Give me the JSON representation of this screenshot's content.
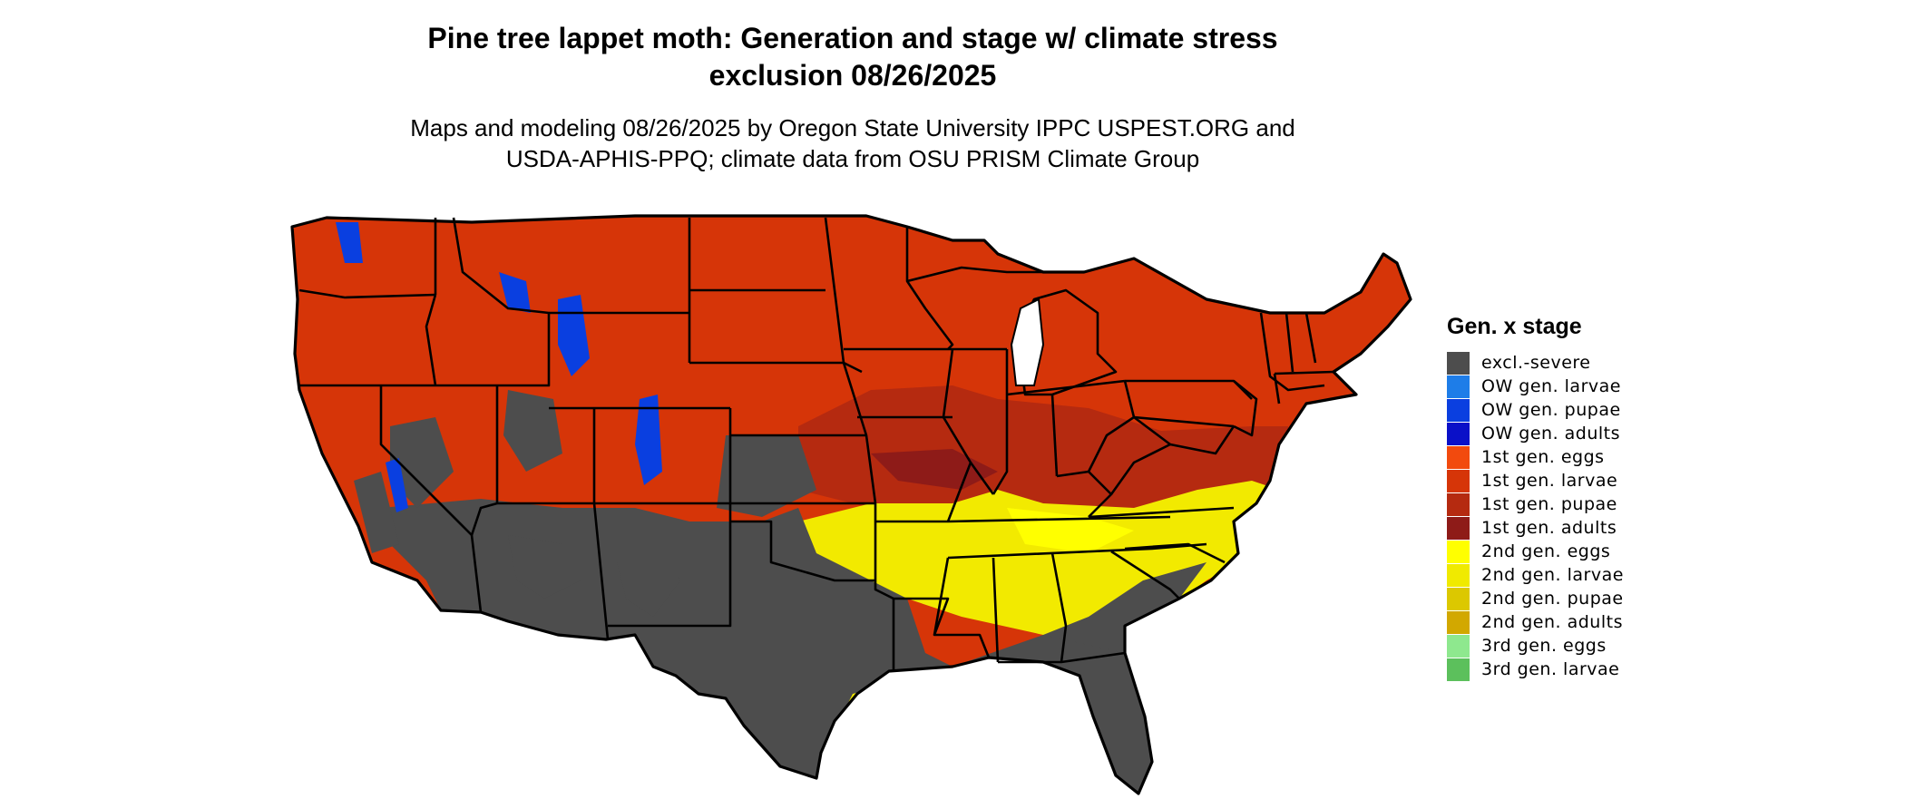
{
  "title": {
    "line1": "Pine tree lappet moth: Generation and stage w/ climate stress",
    "line2": "exclusion 08/26/2025"
  },
  "subtitle": {
    "line1": "Maps and modeling 08/26/2025 by Oregon State University IPPC USPEST.ORG and",
    "line2": "USDA-APHIS-PPQ; climate data from OSU PRISM Climate Group"
  },
  "legend": {
    "title": "Gen. x stage",
    "items": [
      {
        "label": "excl.-severe",
        "color": "#4d4d4d"
      },
      {
        "label": "OW gen. larvae",
        "color": "#1e7de8"
      },
      {
        "label": "OW gen. pupae",
        "color": "#0a3fe0"
      },
      {
        "label": "OW gen. adults",
        "color": "#0a10c8"
      },
      {
        "label": "1st gen. eggs",
        "color": "#f24a0e"
      },
      {
        "label": "1st gen. larvae",
        "color": "#d63508"
      },
      {
        "label": "1st gen. pupae",
        "color": "#b52a10"
      },
      {
        "label": "1st gen. adults",
        "color": "#8e1b18"
      },
      {
        "label": "2nd gen. eggs",
        "color": "#ffff00"
      },
      {
        "label": "2nd gen. larvae",
        "color": "#f0ea00"
      },
      {
        "label": "2nd gen. pupae",
        "color": "#dcc800"
      },
      {
        "label": "2nd gen. adults",
        "color": "#d2a800"
      },
      {
        "label": "3rd gen. eggs",
        "color": "#8ee88e"
      },
      {
        "label": "3rd gen. larvae",
        "color": "#5cc05c"
      }
    ]
  }
}
